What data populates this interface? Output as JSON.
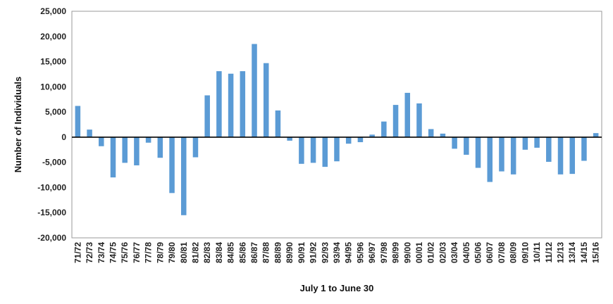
{
  "chart_data": {
    "type": "bar",
    "title": "",
    "xlabel": "July 1 to June 30",
    "ylabel": "Number of Individuals",
    "ylim": [
      -20000,
      25000
    ],
    "yticks": [
      25000,
      20000,
      15000,
      10000,
      5000,
      0,
      -5000,
      -10000,
      -15000,
      -20000
    ],
    "ytick_labels": [
      "25,000",
      "20,000",
      "15,000",
      "10,000",
      "5,000",
      "0",
      "-5,000",
      "-10,000",
      "-15,000",
      "-20,000"
    ],
    "grid": false,
    "bar_color": "#5b9bd5",
    "categories": [
      "71/72",
      "72/73",
      "73/74",
      "74/75",
      "75/76",
      "76/77",
      "77/78",
      "78/79",
      "79/80",
      "80/81",
      "81/82",
      "82/83",
      "83/84",
      "84/85",
      "85/86",
      "86/87",
      "87/88",
      "88/89",
      "89/90",
      "90/91",
      "91/92",
      "92/93",
      "93/94",
      "94/95",
      "95/96",
      "96/97",
      "97/98",
      "98/99",
      "99/00",
      "00/01",
      "01/02",
      "02/03",
      "03/04",
      "04/05",
      "05/06",
      "06/07",
      "07/08",
      "08/09",
      "09/10",
      "10/11",
      "11/12",
      "12/13",
      "13/14",
      "14/15",
      "15/16"
    ],
    "values": [
      6200,
      1500,
      -1800,
      -8000,
      -5100,
      -5600,
      -1100,
      -4100,
      -11100,
      -15500,
      -4000,
      8300,
      13100,
      12600,
      13100,
      18500,
      14700,
      5300,
      -700,
      -5300,
      -5100,
      -5900,
      -4800,
      -1300,
      -1000,
      500,
      3100,
      6400,
      8800,
      6700,
      1600,
      700,
      -2300,
      -3500,
      -6100,
      -8900,
      -6800,
      -7400,
      -2500,
      -2100,
      -4900,
      -7400,
      -7300,
      -4700,
      800
    ]
  }
}
